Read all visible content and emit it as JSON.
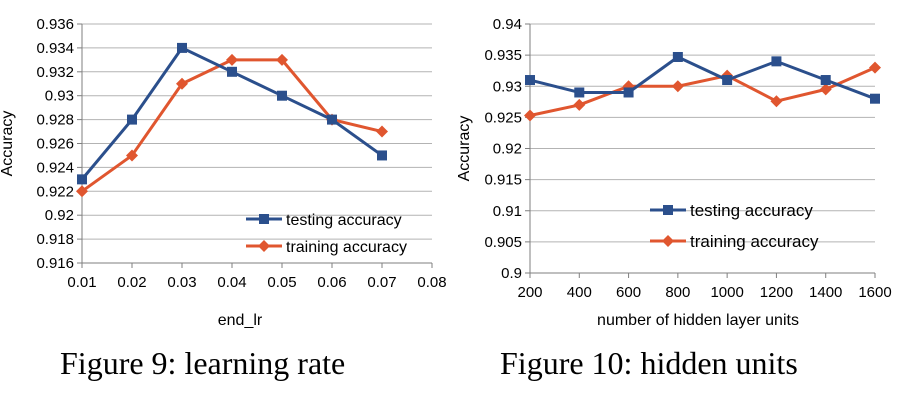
{
  "colors": {
    "testing": "#2b4f8c",
    "training": "#e0562f",
    "grid": "#b3b3b3",
    "axis": "#7f7f7f"
  },
  "captions": [
    "Figure 9: learning rate",
    "Figure 10: hidden units"
  ],
  "chart_data": [
    {
      "type": "line",
      "title": "",
      "xlabel": "end_lr",
      "ylabel": "Accuracy",
      "xlim": [
        0.01,
        0.08
      ],
      "ylim": [
        0.916,
        0.936
      ],
      "x_ticks": [
        "0.01",
        "0.02",
        "0.03",
        "0.04",
        "0.05",
        "0.06",
        "0.07",
        "0.08"
      ],
      "y_ticks": [
        "0.916",
        "0.918",
        "0.92",
        "0.922",
        "0.924",
        "0.926",
        "0.928",
        "0.93",
        "0.932",
        "0.934",
        "0.936"
      ],
      "grid": true,
      "legend": "bottom-right",
      "x": [
        0.01,
        0.02,
        0.03,
        0.04,
        0.05,
        0.06,
        0.07
      ],
      "series": [
        {
          "name": "testing accuracy",
          "marker": "square",
          "values": [
            0.923,
            0.928,
            0.934,
            0.932,
            0.93,
            0.928,
            0.925
          ]
        },
        {
          "name": "training accuracy",
          "marker": "diamond",
          "values": [
            0.922,
            0.925,
            0.931,
            0.933,
            0.933,
            0.928,
            0.927
          ]
        }
      ]
    },
    {
      "type": "line",
      "title": "",
      "xlabel": "number of hidden layer units",
      "ylabel": "Accuracy",
      "xlim": [
        200,
        1600
      ],
      "ylim": [
        0.9,
        0.94
      ],
      "x_ticks": [
        "200",
        "400",
        "600",
        "800",
        "1000",
        "1200",
        "1400",
        "1600"
      ],
      "y_ticks": [
        "0.9",
        "0.905",
        "0.91",
        "0.915",
        "0.92",
        "0.925",
        "0.93",
        "0.935",
        "0.94"
      ],
      "grid": true,
      "legend": "bottom-center",
      "x": [
        200,
        400,
        600,
        800,
        1000,
        1200,
        1400,
        1600
      ],
      "series": [
        {
          "name": "testing accuracy",
          "marker": "square",
          "values": [
            0.931,
            0.929,
            0.929,
            0.9347,
            0.931,
            0.934,
            0.931,
            0.928
          ]
        },
        {
          "name": "training accuracy",
          "marker": "diamond",
          "values": [
            0.9253,
            0.927,
            0.93,
            0.93,
            0.9317,
            0.9276,
            0.9295,
            0.933
          ]
        }
      ]
    }
  ]
}
